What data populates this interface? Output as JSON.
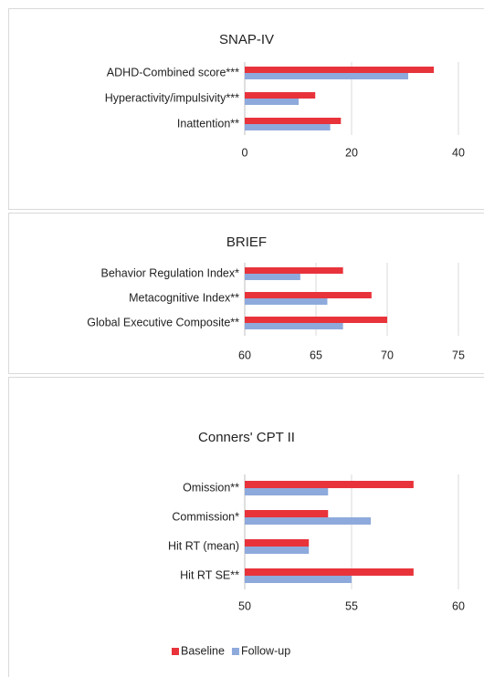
{
  "chart_data": [
    {
      "type": "bar",
      "orientation": "horizontal",
      "title": "SNAP-IV",
      "categories": [
        "ADHD-Combined score***",
        "Hyperactivity/impulsivity***",
        "Inattention**"
      ],
      "series": [
        {
          "color": "#e8333b",
          "values": [
            35.4,
            13.2,
            18
          ]
        },
        {
          "color": "#8eaadc",
          "values": [
            30.6,
            10.1,
            16
          ]
        }
      ],
      "xlim": [
        0,
        40
      ],
      "xticks": [
        0,
        20,
        40
      ],
      "grid": true
    },
    {
      "type": "bar",
      "orientation": "horizontal",
      "title": "BRIEF",
      "categories": [
        "Behavior Regulation Index*",
        "Metacognitive Index**",
        "Global Executive Composite**"
      ],
      "series": [
        {
          "color": "#e8333b",
          "values": [
            66.9,
            68.9,
            70
          ]
        },
        {
          "color": "#8eaadc",
          "values": [
            63.9,
            65.8,
            66.9
          ]
        }
      ],
      "xlim": [
        60,
        75
      ],
      "xticks": [
        60,
        65,
        70,
        75
      ],
      "grid": true
    },
    {
      "type": "bar",
      "orientation": "horizontal",
      "title": "Conners' CPT II",
      "categories": [
        "Omission**",
        "Commission*",
        "Hit RT (mean)",
        "Hit RT SE**"
      ],
      "series": [
        {
          "name": "Baseline",
          "color": "#e8333b",
          "values": [
            57.9,
            53.9,
            53,
            57.9
          ]
        },
        {
          "name": "Follow-up",
          "color": "#8eaadc",
          "values": [
            53.9,
            55.9,
            53,
            55
          ]
        }
      ],
      "xlim": [
        50,
        60
      ],
      "xticks": [
        50,
        55,
        60
      ],
      "grid": true,
      "legend": "bottom"
    }
  ]
}
